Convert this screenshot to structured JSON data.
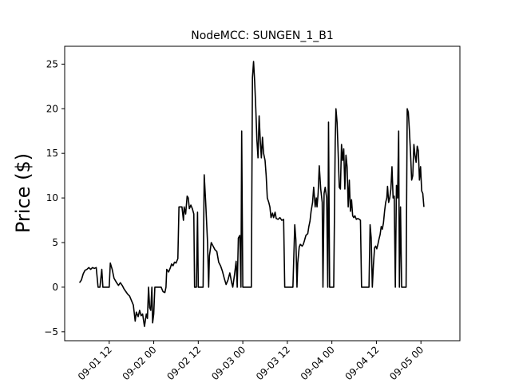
{
  "chart_data": {
    "type": "line",
    "title": "NodeMCC: SUNGEN_1_B1",
    "xlabel": "",
    "ylabel": "Price ($)",
    "x_unit": "hours since 2017-09-01 00",
    "x_ticks": [
      {
        "x": 12,
        "label": "09-01 12"
      },
      {
        "x": 24,
        "label": "09-02 00"
      },
      {
        "x": 36,
        "label": "09-02 12"
      },
      {
        "x": 48,
        "label": "09-03 00"
      },
      {
        "x": 60,
        "label": "09-03 12"
      },
      {
        "x": 72,
        "label": "09-04 00"
      },
      {
        "x": 84,
        "label": "09-04 12"
      },
      {
        "x": 96,
        "label": "09-05 00"
      }
    ],
    "y_ticks": [
      -5,
      0,
      5,
      10,
      15,
      20,
      25
    ],
    "xlim": [
      0,
      106.5
    ],
    "ylim": [
      -6,
      27
    ],
    "grid": false,
    "series": [
      {
        "name": "",
        "color": "#000000",
        "points": [
          [
            4.0,
            0.5
          ],
          [
            4.5,
            0.8
          ],
          [
            5.0,
            1.5
          ],
          [
            5.5,
            1.9
          ],
          [
            6.0,
            2.0
          ],
          [
            6.5,
            2.2
          ],
          [
            7.0,
            2.0
          ],
          [
            7.5,
            2.2
          ],
          [
            8.0,
            2.1
          ],
          [
            8.5,
            2.2
          ],
          [
            9.0,
            0.0
          ],
          [
            9.5,
            0.0
          ],
          [
            10.0,
            2.0
          ],
          [
            10.3,
            0.0
          ],
          [
            11.0,
            0.0
          ],
          [
            11.5,
            0.0
          ],
          [
            12.0,
            0.0
          ],
          [
            12.3,
            2.7
          ],
          [
            12.8,
            2.0
          ],
          [
            13.3,
            1.0
          ],
          [
            14.0,
            0.5
          ],
          [
            14.5,
            0.2
          ],
          [
            15.0,
            0.5
          ],
          [
            15.5,
            0.2
          ],
          [
            16.0,
            -0.2
          ],
          [
            16.5,
            -0.5
          ],
          [
            17.0,
            -0.8
          ],
          [
            17.5,
            -1.0
          ],
          [
            18.0,
            -1.5
          ],
          [
            18.5,
            -2.0
          ],
          [
            19.0,
            -3.8
          ],
          [
            19.3,
            -2.8
          ],
          [
            19.8,
            -3.3
          ],
          [
            20.2,
            -2.6
          ],
          [
            20.6,
            -3.2
          ],
          [
            21.0,
            -3.0
          ],
          [
            21.5,
            -4.4
          ],
          [
            22.0,
            -3.0
          ],
          [
            22.3,
            -3.5
          ],
          [
            22.6,
            0.0
          ],
          [
            22.9,
            -2.3
          ],
          [
            23.2,
            -2.6
          ],
          [
            23.5,
            0.0
          ],
          [
            23.7,
            -4.0
          ],
          [
            24.0,
            -3.0
          ],
          [
            24.3,
            0.0
          ],
          [
            25.0,
            0.0
          ],
          [
            25.5,
            0.0
          ],
          [
            26.0,
            0.0
          ],
          [
            26.5,
            -0.5
          ],
          [
            27.0,
            -0.6
          ],
          [
            27.3,
            0.0
          ],
          [
            27.5,
            2.0
          ],
          [
            28.0,
            1.7
          ],
          [
            28.5,
            2.2
          ],
          [
            28.8,
            2.6
          ],
          [
            29.2,
            2.4
          ],
          [
            29.6,
            2.8
          ],
          [
            30.0,
            2.7
          ],
          [
            30.5,
            3.2
          ],
          [
            30.8,
            9.0
          ],
          [
            31.3,
            9.0
          ],
          [
            31.6,
            9.0
          ],
          [
            32.0,
            7.5
          ],
          [
            32.2,
            9.0
          ],
          [
            32.6,
            8.2
          ],
          [
            33.0,
            10.2
          ],
          [
            33.3,
            10.0
          ],
          [
            33.6,
            8.8
          ],
          [
            34.0,
            9.2
          ],
          [
            34.4,
            8.8
          ],
          [
            34.8,
            8.2
          ],
          [
            35.0,
            0.0
          ],
          [
            35.5,
            0.0
          ],
          [
            35.8,
            8.4
          ],
          [
            36.0,
            0.0
          ],
          [
            36.5,
            0.0
          ],
          [
            37.0,
            0.0
          ],
          [
            37.3,
            0.0
          ],
          [
            37.6,
            12.6
          ],
          [
            38.0,
            9.5
          ],
          [
            38.5,
            5.0
          ],
          [
            38.8,
            0.0
          ],
          [
            39.0,
            3.5
          ],
          [
            39.5,
            5.0
          ],
          [
            40.0,
            4.6
          ],
          [
            40.5,
            4.2
          ],
          [
            41.0,
            4.0
          ],
          [
            41.5,
            2.8
          ],
          [
            42.0,
            2.4
          ],
          [
            42.5,
            1.8
          ],
          [
            43.0,
            1.0
          ],
          [
            43.5,
            0.3
          ],
          [
            44.0,
            0.8
          ],
          [
            44.5,
            1.6
          ],
          [
            45.0,
            0.5
          ],
          [
            45.3,
            0.0
          ],
          [
            45.8,
            1.5
          ],
          [
            46.2,
            2.9
          ],
          [
            46.5,
            0.0
          ],
          [
            46.8,
            5.5
          ],
          [
            47.2,
            5.8
          ],
          [
            47.5,
            0.0
          ],
          [
            47.7,
            17.5
          ],
          [
            48.0,
            0.0
          ],
          [
            48.5,
            0.0
          ],
          [
            49.0,
            0.0
          ],
          [
            49.5,
            0.0
          ],
          [
            50.0,
            0.0
          ],
          [
            50.3,
            0.0
          ],
          [
            50.6,
            23.5
          ],
          [
            50.9,
            25.3
          ],
          [
            51.2,
            23.0
          ],
          [
            51.5,
            20.0
          ],
          [
            51.8,
            16.5
          ],
          [
            52.1,
            14.5
          ],
          [
            52.4,
            19.2
          ],
          [
            52.7,
            16.5
          ],
          [
            53.0,
            14.5
          ],
          [
            53.3,
            16.8
          ],
          [
            53.6,
            15.0
          ],
          [
            54.0,
            14.2
          ],
          [
            54.3,
            12.5
          ],
          [
            54.6,
            10.0
          ],
          [
            55.0,
            9.5
          ],
          [
            55.3,
            9.0
          ],
          [
            55.6,
            7.8
          ],
          [
            56.0,
            8.3
          ],
          [
            56.3,
            7.8
          ],
          [
            56.7,
            8.4
          ],
          [
            57.0,
            7.7
          ],
          [
            57.5,
            7.6
          ],
          [
            58.0,
            7.8
          ],
          [
            58.5,
            7.5
          ],
          [
            59.0,
            7.6
          ],
          [
            59.3,
            0.0
          ],
          [
            60.0,
            0.0
          ],
          [
            60.5,
            0.0
          ],
          [
            61.0,
            0.0
          ],
          [
            61.5,
            0.0
          ],
          [
            62.0,
            7.0
          ],
          [
            62.3,
            5.3
          ],
          [
            62.6,
            0.0
          ],
          [
            62.8,
            2.7
          ],
          [
            63.2,
            4.5
          ],
          [
            63.5,
            4.8
          ],
          [
            64.0,
            4.6
          ],
          [
            64.3,
            4.8
          ],
          [
            64.6,
            5.2
          ],
          [
            65.0,
            5.8
          ],
          [
            65.5,
            6.0
          ],
          [
            65.8,
            6.8
          ],
          [
            66.1,
            7.4
          ],
          [
            66.4,
            8.5
          ],
          [
            66.8,
            9.5
          ],
          [
            67.1,
            11.2
          ],
          [
            67.5,
            9.0
          ],
          [
            67.8,
            10.0
          ],
          [
            68.0,
            9.0
          ],
          [
            68.3,
            10.5
          ],
          [
            68.6,
            13.6
          ],
          [
            69.0,
            11.0
          ],
          [
            69.4,
            9.5
          ],
          [
            69.6,
            0.0
          ],
          [
            69.9,
            10.5
          ],
          [
            70.2,
            11.2
          ],
          [
            70.6,
            10.0
          ],
          [
            70.9,
            0.0
          ],
          [
            71.1,
            18.5
          ],
          [
            71.4,
            0.0
          ],
          [
            72.0,
            0.0
          ],
          [
            72.5,
            0.0
          ],
          [
            72.9,
            16.3
          ],
          [
            73.1,
            20.0
          ],
          [
            73.4,
            18.5
          ],
          [
            73.7,
            15.0
          ],
          [
            74.0,
            11.2
          ],
          [
            74.3,
            11.0
          ],
          [
            74.6,
            16.0
          ],
          [
            74.9,
            14.2
          ],
          [
            75.2,
            15.5
          ],
          [
            75.5,
            11.0
          ],
          [
            75.8,
            14.8
          ],
          [
            76.1,
            13.5
          ],
          [
            76.4,
            9.0
          ],
          [
            76.7,
            12.0
          ],
          [
            77.0,
            8.5
          ],
          [
            77.3,
            9.8
          ],
          [
            77.6,
            8.0
          ],
          [
            77.9,
            7.8
          ],
          [
            78.2,
            8.0
          ],
          [
            78.6,
            7.6
          ],
          [
            79.0,
            7.7
          ],
          [
            79.4,
            7.6
          ],
          [
            79.7,
            7.5
          ],
          [
            80.0,
            0.0
          ],
          [
            80.5,
            0.0
          ],
          [
            81.0,
            0.0
          ],
          [
            81.5,
            0.0
          ],
          [
            82.0,
            0.0
          ],
          [
            82.3,
            7.0
          ],
          [
            82.6,
            5.5
          ],
          [
            82.9,
            0.0
          ],
          [
            83.2,
            2.5
          ],
          [
            83.5,
            4.4
          ],
          [
            83.8,
            4.6
          ],
          [
            84.1,
            4.3
          ],
          [
            84.4,
            4.8
          ],
          [
            84.7,
            5.4
          ],
          [
            85.0,
            5.9
          ],
          [
            85.3,
            6.8
          ],
          [
            85.6,
            6.5
          ],
          [
            85.9,
            7.2
          ],
          [
            86.2,
            8.5
          ],
          [
            86.5,
            9.5
          ],
          [
            86.8,
            10.0
          ],
          [
            87.0,
            11.3
          ],
          [
            87.3,
            9.5
          ],
          [
            87.6,
            10.0
          ],
          [
            87.9,
            11.0
          ],
          [
            88.2,
            13.5
          ],
          [
            88.5,
            10.0
          ],
          [
            88.8,
            10.2
          ],
          [
            89.1,
            0.0
          ],
          [
            89.4,
            11.4
          ],
          [
            89.7,
            10.0
          ],
          [
            90.0,
            17.5
          ],
          [
            90.2,
            0.0
          ],
          [
            90.5,
            9.0
          ],
          [
            90.8,
            0.0
          ],
          [
            91.1,
            0.0
          ],
          [
            91.4,
            0.0
          ],
          [
            91.7,
            0.0
          ],
          [
            92.0,
            0.0
          ],
          [
            92.3,
            20.0
          ],
          [
            92.6,
            19.6
          ],
          [
            92.9,
            17.5
          ],
          [
            93.2,
            15.0
          ],
          [
            93.5,
            12.0
          ],
          [
            93.8,
            12.5
          ],
          [
            94.1,
            16.0
          ],
          [
            94.4,
            14.8
          ],
          [
            94.7,
            14.0
          ],
          [
            95.0,
            15.8
          ],
          [
            95.3,
            15.3
          ],
          [
            95.6,
            12.0
          ],
          [
            95.9,
            13.5
          ],
          [
            96.2,
            10.8
          ],
          [
            96.5,
            10.5
          ],
          [
            96.8,
            9.0
          ]
        ]
      }
    ]
  }
}
